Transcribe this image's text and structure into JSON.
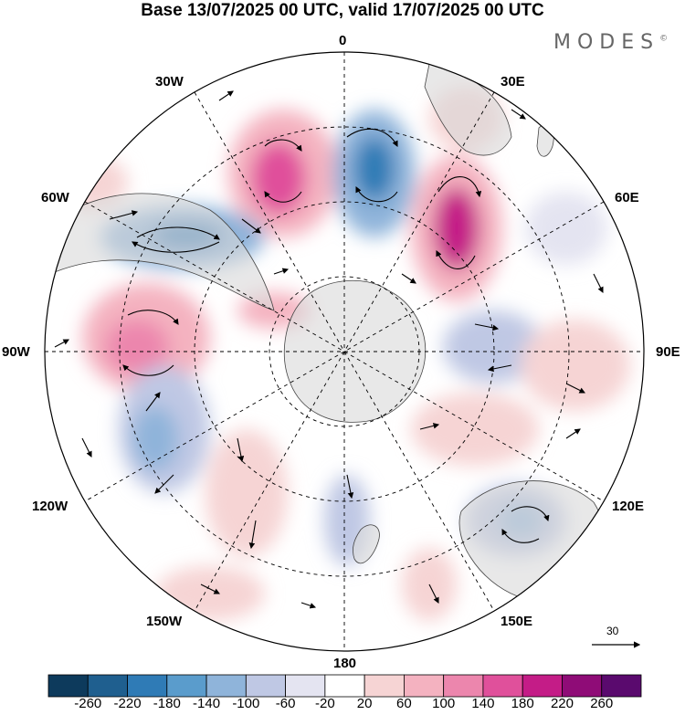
{
  "title": "Base 13/07/2025 00 UTC, valid 17/07/2025 00 UTC",
  "logo": {
    "text": "MODES",
    "mark": "©"
  },
  "longitude_labels": [
    "0",
    "30E",
    "60E",
    "90E",
    "120E",
    "150E",
    "180",
    "150W",
    "120W",
    "90W",
    "60W",
    "30W"
  ],
  "reference_vector": {
    "label": "30"
  },
  "colorbar": {
    "ticks": [
      "-260",
      "-220",
      "-180",
      "-140",
      "-100",
      "-60",
      "-20",
      "20",
      "60",
      "100",
      "140",
      "180",
      "220",
      "260"
    ],
    "colors": [
      "#0d3a5c",
      "#1f5f8f",
      "#2f7bb6",
      "#5a9ccc",
      "#8fb4da",
      "#bfc8e4",
      "#e4e4f1",
      "#ffffff",
      "#f6d4d4",
      "#f4b2c0",
      "#ec86ad",
      "#e0509b",
      "#c41c87",
      "#8f0c77",
      "#5a0a6e"
    ]
  },
  "map": {
    "projection": "south polar stereographic",
    "background_land_color": "#d9d9d9",
    "anomalies": [
      {
        "name": "positive-anomaly-atlantic-west",
        "sign": "positive",
        "strength": "strong"
      },
      {
        "name": "negative-anomaly-atlantic-central",
        "sign": "negative",
        "strength": "strong"
      },
      {
        "name": "positive-anomaly-south-africa",
        "sign": "positive",
        "strength": "very-strong"
      },
      {
        "name": "negative-anomaly-south-america",
        "sign": "negative",
        "strength": "strong"
      },
      {
        "name": "positive-anomaly-east-pacific",
        "sign": "positive",
        "strength": "strong"
      },
      {
        "name": "negative-anomaly-pacific",
        "sign": "negative",
        "strength": "moderate"
      },
      {
        "name": "negative-anomaly-indian-ocean",
        "sign": "negative",
        "strength": "moderate"
      },
      {
        "name": "negative-anomaly-australia",
        "sign": "negative",
        "strength": "moderate"
      },
      {
        "name": "positive-anomaly-south-pacific",
        "sign": "positive",
        "strength": "weak"
      },
      {
        "name": "positive-anomaly-indian-south",
        "sign": "positive",
        "strength": "weak"
      }
    ]
  }
}
